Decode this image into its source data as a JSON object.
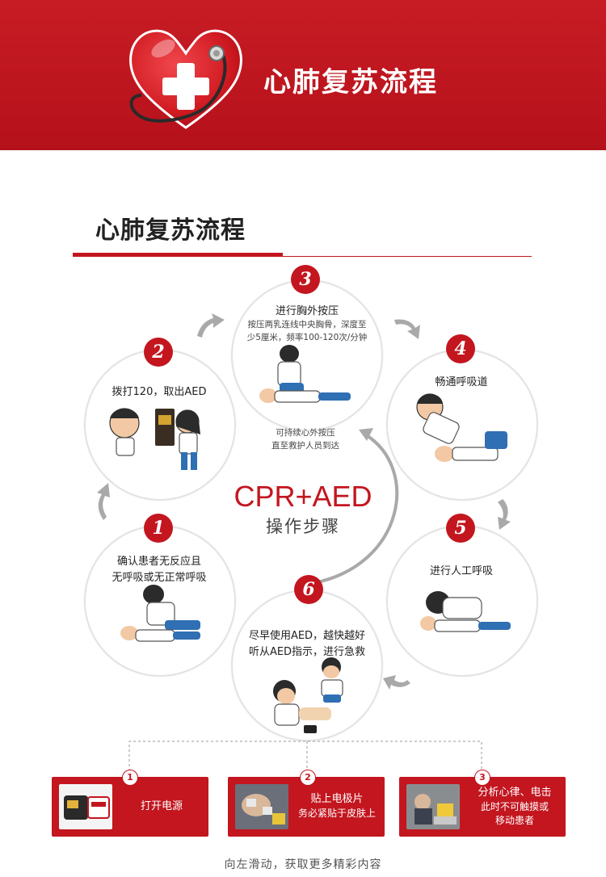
{
  "header": {
    "title": "心肺复苏流程",
    "logo_icon": "heart-stethoscope-icon",
    "brand_color": "#c3161f"
  },
  "section": {
    "title": "心肺复苏流程"
  },
  "center": {
    "main": "CPR+AED",
    "sub": "操作步骤",
    "note_line1": "可持续心外按压",
    "note_line2": "直至救护人员到达"
  },
  "steps": [
    {
      "num": "1",
      "line1": "确认患者无反应且",
      "line2": "无呼吸或无正常呼吸"
    },
    {
      "num": "2",
      "line1": "拨打120，取出AED"
    },
    {
      "num": "3",
      "line1": "进行胸外按压",
      "sub1": "按压两乳连线中央胸骨，深度至",
      "sub2": "少5厘米，频率100-120次/分钟"
    },
    {
      "num": "4",
      "line1": "畅通呼吸道"
    },
    {
      "num": "5",
      "line1": "进行人工呼吸"
    },
    {
      "num": "6",
      "line1": "尽早使用AED，越快越好",
      "line2": "听从AED指示，进行急救"
    }
  ],
  "aed_steps": [
    {
      "num": "1",
      "line1": "打开电源"
    },
    {
      "num": "2",
      "line1": "贴上电极片",
      "line2": "务必紧贴于皮肤上"
    },
    {
      "num": "3",
      "line1": "分析心律、电击",
      "line2": "此时不可触摸或",
      "line3": "移动患者"
    }
  ],
  "footer": {
    "text": "向左滑动，获取更多精彩内容"
  }
}
